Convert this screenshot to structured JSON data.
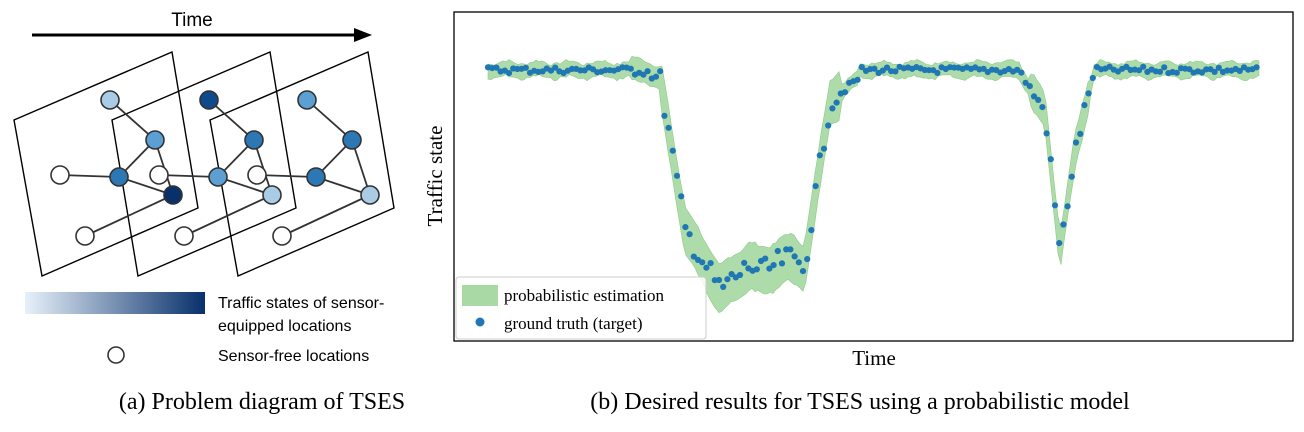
{
  "panel_a": {
    "time_label": "Time",
    "legend": {
      "gradient_label_line1": "Traffic states of sensor-",
      "gradient_label_line2": "equipped locations",
      "gradient_colors": [
        "#e8f1fa",
        "#08306b"
      ],
      "sensor_free_label": "Sensor-free locations"
    },
    "caption": "(a) Problem diagram of TSES",
    "node_colors": {
      "light": "#a9cbe6",
      "medium": "#5b9fd3",
      "mid": "#2b78b5",
      "dark": "#0f4a8c",
      "darkest": "#08306b",
      "empty": "#ffffff"
    }
  },
  "panel_b": {
    "caption": "(b) Desired results for TSES using a probabilistic model",
    "chart_data": {
      "type": "scatter",
      "xlabel": "Time",
      "ylabel": "Traffic state",
      "legend_position": "bottom-left",
      "series": [
        {
          "name": "probabilistic estimation",
          "kind": "band",
          "color": "#a9d9a4"
        },
        {
          "name": "ground truth (target)",
          "kind": "points",
          "color": "#1f77b4"
        }
      ]
    }
  }
}
